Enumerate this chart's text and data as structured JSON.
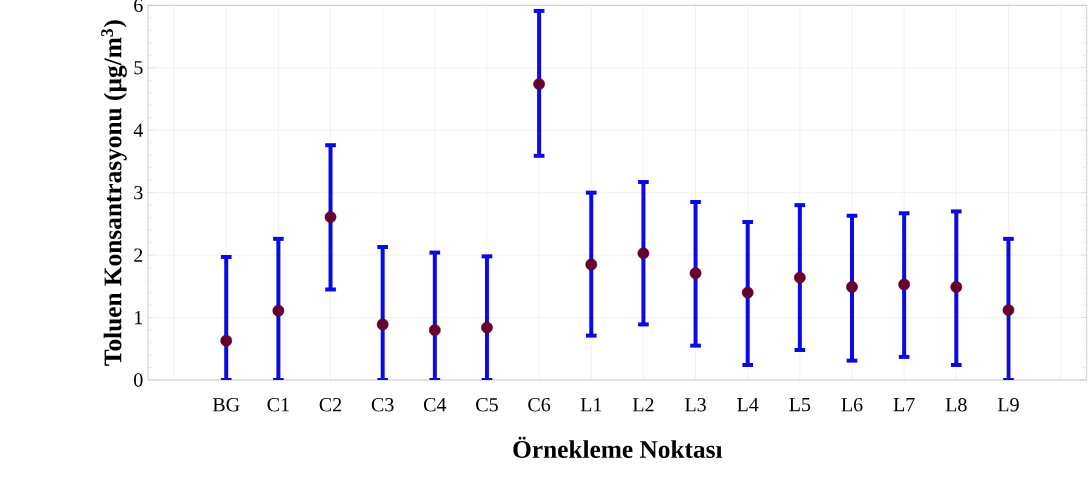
{
  "chart_data": {
    "type": "scatter",
    "xlabel": "Örnekleme Noktası",
    "ylabel": "Toluen  Konsantrasyonu (µg/m$^{3}$)",
    "categories": [
      "BG",
      "C1",
      "C2",
      "C3",
      "C4",
      "C5",
      "C6",
      "L1",
      "L2",
      "L3",
      "L4",
      "L5",
      "L6",
      "L7",
      "L8",
      "L9"
    ],
    "values": [
      0.63,
      1.11,
      2.61,
      0.89,
      0.8,
      0.84,
      4.74,
      1.85,
      2.03,
      1.71,
      1.4,
      1.64,
      1.49,
      1.53,
      1.49,
      1.12
    ],
    "errors": [
      [
        0,
        1.97
      ],
      [
        0,
        2.26
      ],
      [
        1.45,
        3.76
      ],
      [
        0,
        2.13
      ],
      [
        0,
        2.04
      ],
      [
        0,
        1.98
      ],
      [
        3.59,
        5.91
      ],
      [
        0.71,
        3.0
      ],
      [
        0.89,
        3.17
      ],
      [
        0.55,
        2.85
      ],
      [
        0.24,
        2.53
      ],
      [
        0.48,
        2.8
      ],
      [
        0.31,
        2.63
      ],
      [
        0.37,
        2.67
      ],
      [
        0.24,
        2.7
      ],
      [
        0,
        2.26
      ]
    ],
    "color": "#660230",
    "ylim": [
      0,
      6
    ],
    "yticks": [
      0,
      1,
      2,
      3,
      4,
      5,
      6
    ],
    "grid": true
  }
}
